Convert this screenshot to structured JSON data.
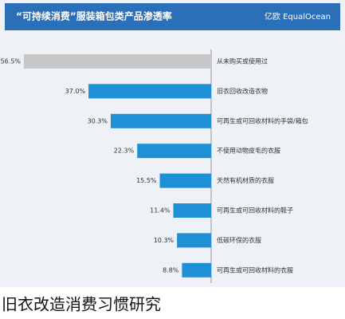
{
  "chart_data": {
    "type": "bar",
    "orientation": "horizontal",
    "title": "“可持续消费”服装箱包类产品渗透率",
    "logo": "亿欧 EqualOcean",
    "caption": "旧衣改造消费习惯研究",
    "categories": [
      "从未购买或使用过",
      "旧衣回收改造衣物",
      "可再生或可回收材料的手袋/箱包",
      "不使用动物皮毛的衣服",
      "天然有机材质的衣服",
      "可再生或可回收材料的鞋子",
      "低碳环保的衣服",
      "可再生或可回收材料的衣服"
    ],
    "values": [
      56.5,
      37.0,
      30.3,
      22.3,
      15.5,
      11.4,
      10.3,
      8.8
    ],
    "value_labels": [
      "56.5%",
      "37.0%",
      "30.3%",
      "22.3%",
      "15.5%",
      "11.4%",
      "10.3%",
      "8.8%"
    ],
    "colors": [
      "#c8c8c8",
      "#1f8fd6",
      "#1f8fd6",
      "#1f8fd6",
      "#1f8fd6",
      "#1f8fd6",
      "#1f8fd6",
      "#1f8fd6"
    ]
  }
}
